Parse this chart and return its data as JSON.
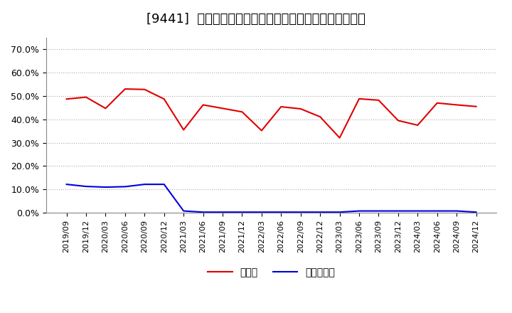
{
  "title": "[9441]  現預金、有利子負債の総資産に対する比率の推移",
  "x_labels": [
    "2019/09",
    "2019/12",
    "2020/03",
    "2020/06",
    "2020/09",
    "2020/12",
    "2021/03",
    "2021/06",
    "2021/09",
    "2021/12",
    "2022/03",
    "2022/06",
    "2022/09",
    "2022/12",
    "2023/03",
    "2023/06",
    "2023/09",
    "2023/12",
    "2024/03",
    "2024/06",
    "2024/09",
    "2024/12"
  ],
  "cash": [
    0.487,
    0.495,
    0.447,
    0.53,
    0.528,
    0.487,
    0.355,
    0.462,
    0.447,
    0.432,
    0.352,
    0.454,
    0.445,
    0.411,
    0.321,
    0.488,
    0.482,
    0.395,
    0.375,
    0.47,
    0.462,
    0.455
  ],
  "debt": [
    0.122,
    0.113,
    0.11,
    0.112,
    0.122,
    0.122,
    0.008,
    0.003,
    0.003,
    0.003,
    0.003,
    0.003,
    0.003,
    0.003,
    0.003,
    0.008,
    0.008,
    0.008,
    0.008,
    0.008,
    0.008,
    0.003
  ],
  "cash_color": "#e00000",
  "debt_color": "#0000dd",
  "background_color": "#ffffff",
  "grid_color": "#aaaaaa",
  "ylim": [
    0.0,
    0.75
  ],
  "yticks": [
    0.0,
    0.1,
    0.2,
    0.3,
    0.4,
    0.5,
    0.6,
    0.7
  ],
  "legend_cash": "現預金",
  "legend_debt": "有利子負債",
  "title_fontsize": 13,
  "axis_fontsize": 9
}
